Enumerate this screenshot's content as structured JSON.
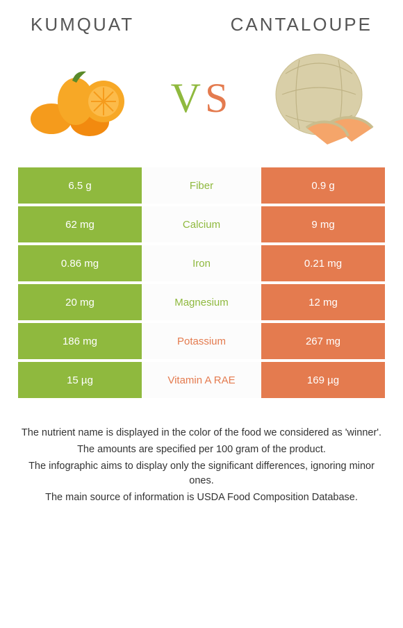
{
  "titles": {
    "left": "Kumquat",
    "right": "Cantaloupe"
  },
  "vs": {
    "v": "V",
    "s": "S"
  },
  "colors": {
    "green": "#8fb93e",
    "orange": "#e47b4f",
    "row_bg": "#fcfcfc",
    "text": "#333333"
  },
  "rows": [
    {
      "left": "6.5 g",
      "label": "Fiber",
      "right": "0.9 g",
      "winner": "green"
    },
    {
      "left": "62 mg",
      "label": "Calcium",
      "right": "9 mg",
      "winner": "green"
    },
    {
      "left": "0.86 mg",
      "label": "Iron",
      "right": "0.21 mg",
      "winner": "green"
    },
    {
      "left": "20 mg",
      "label": "Magnesium",
      "right": "12 mg",
      "winner": "green"
    },
    {
      "left": "186 mg",
      "label": "Potassium",
      "right": "267 mg",
      "winner": "orange"
    },
    {
      "left": "15 µg",
      "label": "Vitamin A RAE",
      "right": "169 µg",
      "winner": "orange"
    }
  ],
  "footer": {
    "l1": "The nutrient name is displayed in the color of the food we considered as 'winner'.",
    "l2": "The amounts are specified per 100 gram of the product.",
    "l3": "The infographic aims to display only the significant differences, ignoring minor ones.",
    "l4": "The main source of information is USDA Food Composition Database."
  }
}
